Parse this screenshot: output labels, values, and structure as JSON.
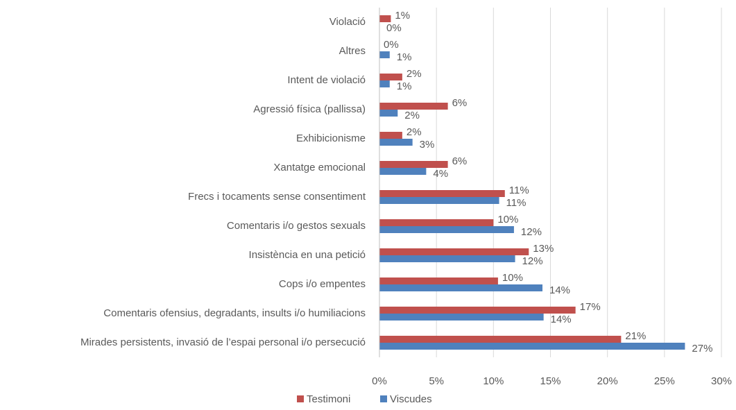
{
  "chart_data": {
    "type": "bar",
    "orientation": "horizontal",
    "categories": [
      "Violació",
      "Altres",
      "Intent de violació",
      "Agressió física (pallissa)",
      "Exhibicionisme",
      "Xantatge emocional",
      "Frecs i tocaments sense consentiment",
      "Comentaris i/o gestos sexuals",
      "Insistència en una petició",
      "Cops i/o empentes",
      "Comentaris ofensius, degradants, insults i/o humiliacions",
      "Mirades persistents, invasió de l’espai personal i/o persecució"
    ],
    "series": [
      {
        "name": "Testimoni",
        "color": "#c0504d",
        "values": [
          1.0,
          0,
          2.0,
          6.0,
          2.0,
          6.0,
          11.0,
          10.0,
          13.1,
          10.4,
          17.2,
          21.2
        ],
        "value_labels": [
          "1%",
          "0%",
          "2%",
          "6%",
          "2%",
          "6%",
          "11%",
          "10%",
          "13%",
          "10%",
          "17%",
          "21%"
        ]
      },
      {
        "name": "Viscudes",
        "color": "#4f81bd",
        "values": [
          0,
          0.9,
          0.9,
          1.6,
          2.9,
          4.1,
          10.5,
          11.8,
          11.9,
          14.3,
          14.4,
          26.8
        ],
        "value_labels": [
          "0%",
          "1%",
          "1%",
          "2%",
          "3%",
          "4%",
          "11%",
          "12%",
          "12%",
          "14%",
          "14%",
          "27%"
        ]
      }
    ],
    "xlim": [
      0,
      30
    ],
    "xticks": [
      {
        "value": 0,
        "label": "0%"
      },
      {
        "value": 5,
        "label": "5%"
      },
      {
        "value": 10,
        "label": "10%"
      },
      {
        "value": 15,
        "label": "15%"
      },
      {
        "value": 20,
        "label": "20%"
      },
      {
        "value": 25,
        "label": "25%"
      },
      {
        "value": 30,
        "label": "30%"
      }
    ],
    "grid": true,
    "legend": "bottom"
  }
}
